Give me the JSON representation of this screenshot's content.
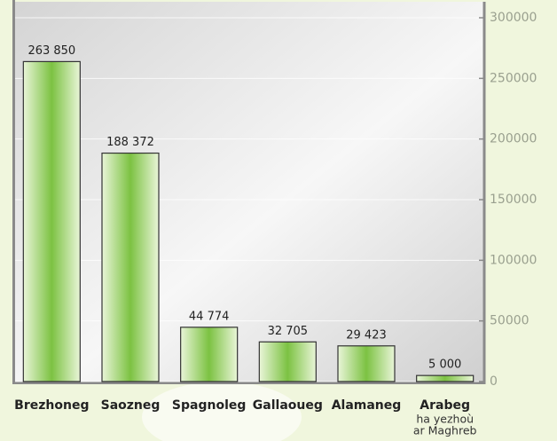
{
  "chart_data": {
    "type": "bar",
    "categories": [
      "Brezhoneg",
      "Saozneg",
      "Spagnoleg",
      "Gallaoueg",
      "Alamaneg",
      "Arabeg"
    ],
    "annotation": [
      "ha yezhoù",
      "ar Maghreb"
    ],
    "values": [
      263850,
      188372,
      44774,
      32705,
      29423,
      5000
    ],
    "value_labels": [
      "263 850",
      "188 372",
      "44 774",
      "32 705",
      "29 423",
      "5 000"
    ],
    "color": "#7cc242",
    "ylim": [
      0,
      300000
    ],
    "yticks": [
      0,
      50000,
      100000,
      150000,
      200000,
      250000,
      300000
    ],
    "yaxis_side": "right",
    "grid": true
  }
}
